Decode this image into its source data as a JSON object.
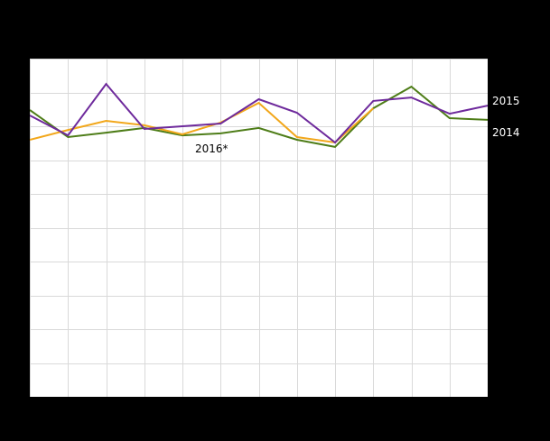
{
  "chart_data": {
    "type": "line",
    "x": [
      1,
      2,
      3,
      4,
      5,
      6,
      7,
      8,
      9,
      10,
      11,
      12,
      13
    ],
    "series": [
      {
        "name": "2014",
        "color": "#4e7d18",
        "values": [
          848,
          768,
          781,
          795,
          773,
          779,
          795,
          760,
          739,
          853,
          917,
          824,
          819
        ]
      },
      {
        "name": "2016*",
        "color": "#f2a71b",
        "values": [
          760,
          789,
          816,
          803,
          776,
          811,
          869,
          768,
          752,
          853
        ]
      },
      {
        "name": "2015",
        "color": "#6e2a9c",
        "values": [
          832,
          773,
          925,
          792,
          800,
          808,
          880,
          840,
          752,
          875,
          885,
          837,
          861
        ]
      }
    ],
    "ylim": [
      0,
      1000
    ],
    "grid": true,
    "grid_divisions": {
      "x": 12,
      "y": 10
    },
    "legend_position": "inline-right",
    "line_width": 2
  },
  "colors": {
    "page_background": "#000000",
    "plot_background": "#ffffff",
    "gridline": "#d9d9d9"
  }
}
